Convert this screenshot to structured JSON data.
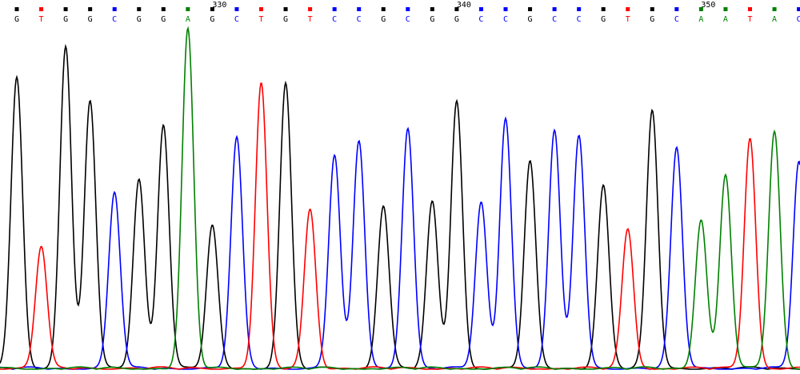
{
  "chart_data": {
    "type": "line",
    "title": "",
    "xlabel": "",
    "ylabel": "",
    "colors": {
      "A": "#008000",
      "C": "#0000ff",
      "G": "#000000",
      "T": "#ff0000"
    },
    "position_ticks": [
      {
        "label": "330",
        "base_index": 8
      },
      {
        "label": "340",
        "base_index": 18
      },
      {
        "label": "350",
        "base_index": 28
      }
    ],
    "base_calls": [
      "G",
      "T",
      "G",
      "G",
      "C",
      "G",
      "G",
      "A",
      "G",
      "C",
      "T",
      "G",
      "T",
      "C",
      "C",
      "G",
      "C",
      "G",
      "G",
      "C",
      "C",
      "G",
      "C",
      "C",
      "G",
      "T",
      "G",
      "C",
      "A",
      "A",
      "T",
      "A",
      "C"
    ],
    "peak_heights": [
      0.86,
      0.36,
      0.95,
      0.79,
      0.52,
      0.56,
      0.72,
      1.0,
      0.42,
      0.68,
      0.84,
      0.84,
      0.47,
      0.63,
      0.67,
      0.48,
      0.71,
      0.49,
      0.79,
      0.49,
      0.74,
      0.61,
      0.7,
      0.69,
      0.54,
      0.41,
      0.76,
      0.65,
      0.44,
      0.57,
      0.68,
      0.7,
      0.61
    ],
    "ylim": [
      0,
      1
    ]
  }
}
